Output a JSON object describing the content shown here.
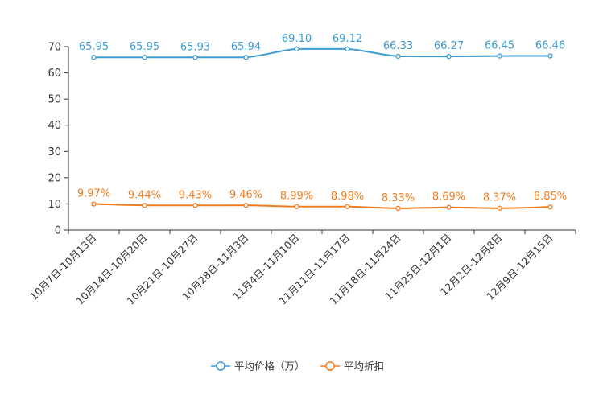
{
  "chart_data": {
    "type": "line",
    "title": "",
    "xlabel": "",
    "ylabel": "",
    "ylim": [
      0,
      70
    ],
    "yticks": [
      0,
      10,
      20,
      30,
      40,
      50,
      60,
      70
    ],
    "grid": false,
    "legend_position": "bottom-center",
    "categories": [
      "10月7日-10月13日",
      "10月14日-10月20日",
      "10月21日-10月27日",
      "10月28日-11月3日",
      "11月4日-11月10日",
      "11月11日-11月17日",
      "11月18日-11月24日",
      "11月25日-12月1日",
      "12月2日-12月8日",
      "12月9日-12月15日"
    ],
    "series": [
      {
        "name": "平均价格（万）",
        "color": "#3c9ccf",
        "values": [
          65.95,
          65.95,
          65.93,
          65.94,
          69.1,
          69.12,
          66.33,
          66.27,
          66.45,
          66.46
        ],
        "labels": [
          "65.95",
          "65.95",
          "65.93",
          "65.94",
          "69.10",
          "69.12",
          "66.33",
          "66.27",
          "66.45",
          "66.46"
        ]
      },
      {
        "name": "平均折扣",
        "color": "#f07c1e",
        "values": [
          9.97,
          9.44,
          9.43,
          9.46,
          8.99,
          8.98,
          8.33,
          8.69,
          8.37,
          8.85
        ],
        "labels": [
          "9.97%",
          "9.44%",
          "9.43%",
          "9.46%",
          "8.99%",
          "8.98%",
          "8.33%",
          "8.69%",
          "8.37%",
          "8.85%"
        ]
      }
    ]
  }
}
